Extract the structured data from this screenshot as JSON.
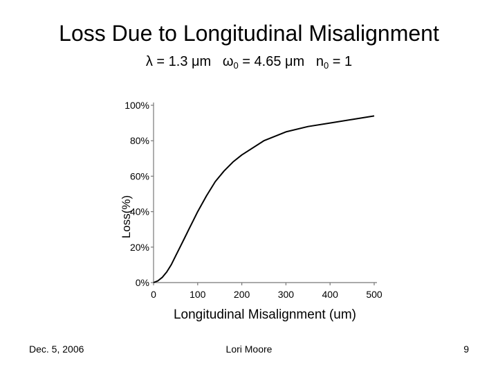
{
  "slide": {
    "title": "Loss Due to Longitudinal Misalignment",
    "params": {
      "lambda": "λ = 1.3 μm",
      "omega_label": "ω",
      "omega_sub": "0",
      "omega_value": " = 4.65 μm",
      "n_label": "n",
      "n_sub": "0",
      "n_value": " = 1"
    },
    "footer": {
      "date": "Dec. 5, 2006",
      "author": "Lori Moore",
      "page": "9"
    }
  },
  "chart_data": {
    "type": "line",
    "title": "",
    "xlabel": "Longitudinal Misalignment (um)",
    "ylabel": "Loss(%)",
    "xlim": [
      0,
      500
    ],
    "ylim": [
      0,
      100
    ],
    "xticks": [
      0,
      100,
      200,
      300,
      400,
      500
    ],
    "yticks": [
      0,
      20,
      40,
      60,
      80,
      100
    ],
    "ytick_labels": [
      "0%",
      "20%",
      "40%",
      "60%",
      "80%",
      "100%"
    ],
    "grid": false,
    "series": [
      {
        "color": "#000000",
        "x": [
          0,
          10,
          20,
          30,
          40,
          50,
          60,
          70,
          80,
          90,
          100,
          120,
          140,
          160,
          180,
          200,
          250,
          300,
          350,
          400,
          450,
          500
        ],
        "y": [
          0,
          1,
          3,
          6,
          10,
          15,
          20,
          25,
          30,
          35,
          40,
          49,
          57,
          63,
          68,
          72,
          80,
          85,
          88,
          90,
          92,
          94
        ]
      }
    ]
  }
}
